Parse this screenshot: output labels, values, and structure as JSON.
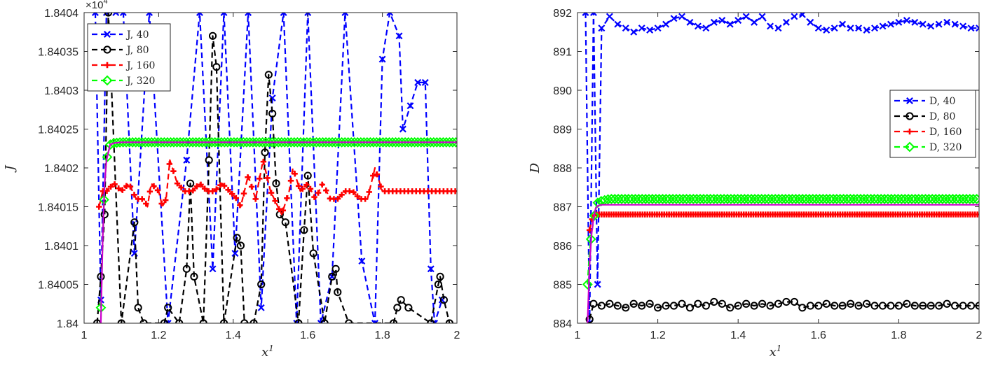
{
  "chart_data": [
    {
      "type": "line",
      "xlabel": "x",
      "xlabel_sup": "1",
      "ylabel": "J",
      "xlim": [
        1,
        2
      ],
      "ylim": [
        1.84,
        1.8404
      ],
      "y_multiplier": "×10",
      "y_multiplier_exp": "4",
      "xticks": [
        "1",
        "1.2",
        "1.4",
        "1.6",
        "1.8",
        "2"
      ],
      "yticks": [
        "1.84",
        "1.84005",
        "1.8401",
        "1.84015",
        "1.8402",
        "1.84025",
        "1.8403",
        "1.84035",
        "1.8404"
      ],
      "grid": false,
      "legend_position": "top-left",
      "series": [
        {
          "name": "J, 40",
          "color": "#0000ff",
          "marker": "x",
          "x": [
            1.03,
            1.045,
            1.06,
            1.085,
            1.105,
            1.135,
            1.175,
            1.225,
            1.275,
            1.31,
            1.345,
            1.375,
            1.405,
            1.44,
            1.475,
            1.505,
            1.535,
            1.57,
            1.6,
            1.635,
            1.665,
            1.7,
            1.745,
            1.78,
            1.8,
            1.82,
            1.845,
            1.855,
            1.875,
            1.895,
            1.915,
            1.93,
            1.94,
            1.96
          ],
          "y": [
            1.8404,
            1.84003,
            1.8404,
            1.8404,
            1.8404,
            1.84009,
            1.8404,
            1.84,
            1.84021,
            1.8404,
            1.84007,
            1.8404,
            1.84009,
            1.8404,
            1.84002,
            1.84029,
            1.8404,
            1.84,
            1.8404,
            1.84,
            1.84006,
            1.8404,
            1.84008,
            1.84,
            1.84034,
            1.8404,
            1.84037,
            1.84025,
            1.84028,
            1.84031,
            1.84031,
            1.84007,
            1.84,
            1.84003
          ]
        },
        {
          "name": "J, 80",
          "color": "#000000",
          "marker": "o",
          "x": [
            1.035,
            1.045,
            1.055,
            1.065,
            1.1,
            1.135,
            1.145,
            1.16,
            1.215,
            1.225,
            1.255,
            1.275,
            1.285,
            1.295,
            1.32,
            1.335,
            1.345,
            1.355,
            1.375,
            1.41,
            1.42,
            1.43,
            1.455,
            1.475,
            1.485,
            1.495,
            1.505,
            1.515,
            1.525,
            1.54,
            1.575,
            1.59,
            1.6,
            1.615,
            1.645,
            1.665,
            1.675,
            1.68,
            1.71,
            1.83,
            1.84,
            1.85,
            1.87,
            1.93,
            1.95,
            1.955,
            1.965,
            1.98
          ],
          "y": [
            1.84,
            1.84006,
            1.84014,
            1.8404,
            1.84,
            1.84013,
            1.84002,
            1.84,
            1.84,
            1.84002,
            1.84,
            1.84007,
            1.84018,
            1.84006,
            1.84,
            1.84021,
            1.84037,
            1.84033,
            1.84,
            1.84011,
            1.8401,
            1.84,
            1.84,
            1.84005,
            1.84022,
            1.84032,
            1.84027,
            1.84018,
            1.84014,
            1.84013,
            1.84,
            1.84012,
            1.84019,
            1.84009,
            1.84,
            1.84006,
            1.84007,
            1.84004,
            1.84,
            1.84,
            1.84002,
            1.84003,
            1.84002,
            1.84,
            1.84005,
            1.84006,
            1.84003,
            1.84
          ]
        },
        {
          "name": "J, 160",
          "color": "#ff0000",
          "marker": "+",
          "x": [
            1.04,
            1.05,
            1.06,
            1.08,
            1.1,
            1.12,
            1.14,
            1.16,
            1.17,
            1.18,
            1.2,
            1.21,
            1.22,
            1.23,
            1.25,
            1.27,
            1.29,
            1.31,
            1.33,
            1.35,
            1.37,
            1.39,
            1.41,
            1.42,
            1.44,
            1.46,
            1.48,
            1.5,
            1.52,
            1.53,
            1.55,
            1.56,
            1.58,
            1.6,
            1.62,
            1.64,
            1.66,
            1.68,
            1.7,
            1.72,
            1.74,
            1.76,
            1.78,
            1.8,
            1.82,
            1.84,
            1.86,
            1.88,
            1.9,
            1.92,
            1.94,
            1.96,
            1.98,
            2.0
          ],
          "y": [
            1.84015,
            1.84017,
            1.84017,
            1.84018,
            1.84017,
            1.84018,
            1.84016,
            1.84016,
            1.84015,
            1.84018,
            1.84017,
            1.84015,
            1.84016,
            1.84021,
            1.84018,
            1.84017,
            1.84017,
            1.84018,
            1.84017,
            1.84017,
            1.84018,
            1.84017,
            1.84016,
            1.84015,
            1.84019,
            1.84016,
            1.84021,
            1.84017,
            1.84015,
            1.84014,
            1.84017,
            1.8402,
            1.84017,
            1.84018,
            1.84016,
            1.84018,
            1.84016,
            1.84016,
            1.84017,
            1.84017,
            1.84016,
            1.84016,
            1.8402,
            1.84017,
            1.84017,
            1.84017,
            1.84017,
            1.84017,
            1.84017,
            1.84017,
            1.84017,
            1.84017,
            1.84017,
            1.84017
          ]
        },
        {
          "name": "J, 320",
          "color": "#00ff00",
          "marker": "diamond",
          "x": [
            1.045,
            1.05,
            1.055,
            1.06,
            1.065,
            1.07,
            1.08,
            1.1,
            1.2,
            1.4,
            1.6,
            1.8,
            2.0
          ],
          "y": [
            1.84002,
            1.84011,
            1.84018,
            1.84021,
            1.84022,
            1.84023,
            1.840232,
            1.840233,
            1.840233,
            1.840233,
            1.840233,
            1.840233,
            1.840233
          ]
        },
        {
          "name": "",
          "color": "#cc00cc",
          "marker": "none",
          "x": [
            1.045,
            1.05,
            1.055,
            1.06,
            1.065,
            1.07,
            1.08,
            1.1,
            1.2,
            1.4,
            1.6,
            1.8,
            2.0
          ],
          "y": [
            1.84,
            1.84011,
            1.84018,
            1.84021,
            1.84022,
            1.84023,
            1.840232,
            1.840233,
            1.840233,
            1.840233,
            1.840233,
            1.840233,
            1.840233
          ]
        }
      ]
    },
    {
      "type": "line",
      "xlabel": "x",
      "xlabel_sup": "1",
      "ylabel": "D",
      "xlim": [
        1,
        2
      ],
      "ylim": [
        884,
        892
      ],
      "xticks": [
        "1",
        "1.2",
        "1.4",
        "1.6",
        "1.8",
        "2"
      ],
      "yticks": [
        "884",
        "885",
        "886",
        "887",
        "888",
        "889",
        "890",
        "891",
        "892"
      ],
      "grid": false,
      "legend_position": "center-right",
      "series": [
        {
          "name": "D, 40",
          "color": "#0000ff",
          "marker": "x",
          "x": [
            1.02,
            1.03,
            1.04,
            1.05,
            1.06,
            1.08,
            1.1,
            1.12,
            1.14,
            1.16,
            1.18,
            1.2,
            1.22,
            1.24,
            1.26,
            1.28,
            1.3,
            1.32,
            1.34,
            1.36,
            1.38,
            1.4,
            1.42,
            1.44,
            1.46,
            1.48,
            1.5,
            1.52,
            1.54,
            1.56,
            1.58,
            1.6,
            1.62,
            1.64,
            1.66,
            1.68,
            1.7,
            1.72,
            1.74,
            1.76,
            1.78,
            1.8,
            1.82,
            1.84,
            1.86,
            1.88,
            1.9,
            1.92,
            1.94,
            1.96,
            1.98,
            2.0
          ],
          "y": [
            892,
            884,
            892,
            885,
            891.6,
            891.9,
            891.7,
            891.6,
            891.5,
            891.6,
            891.55,
            891.6,
            891.7,
            891.85,
            891.9,
            891.75,
            891.65,
            891.6,
            891.75,
            891.8,
            891.7,
            891.8,
            891.9,
            891.75,
            891.9,
            891.65,
            891.6,
            891.75,
            891.9,
            891.95,
            891.75,
            891.6,
            891.55,
            891.6,
            891.7,
            891.6,
            891.6,
            891.55,
            891.6,
            891.65,
            891.7,
            891.75,
            891.8,
            891.75,
            891.7,
            891.65,
            891.7,
            891.75,
            891.7,
            891.65,
            891.6,
            891.6
          ]
        },
        {
          "name": "D, 80",
          "color": "#000000",
          "marker": "o",
          "x": [
            1.03,
            1.04,
            1.06,
            1.08,
            1.1,
            1.12,
            1.14,
            1.16,
            1.18,
            1.2,
            1.22,
            1.24,
            1.26,
            1.28,
            1.3,
            1.32,
            1.34,
            1.36,
            1.38,
            1.4,
            1.42,
            1.44,
            1.46,
            1.48,
            1.5,
            1.52,
            1.54,
            1.56,
            1.58,
            1.6,
            1.62,
            1.64,
            1.66,
            1.68,
            1.7,
            1.72,
            1.74,
            1.76,
            1.78,
            1.8,
            1.82,
            1.84,
            1.86,
            1.88,
            1.9,
            1.92,
            1.94,
            1.96,
            1.98,
            2.0
          ],
          "y": [
            884.1,
            884.5,
            884.45,
            884.5,
            884.45,
            884.4,
            884.5,
            884.45,
            884.5,
            884.4,
            884.45,
            884.45,
            884.5,
            884.4,
            884.5,
            884.45,
            884.55,
            884.5,
            884.4,
            884.45,
            884.5,
            884.45,
            884.5,
            884.45,
            884.5,
            884.55,
            884.55,
            884.4,
            884.45,
            884.45,
            884.5,
            884.45,
            884.45,
            884.5,
            884.45,
            884.5,
            884.45,
            884.45,
            884.45,
            884.45,
            884.5,
            884.45,
            884.45,
            884.45,
            884.45,
            884.5,
            884.45,
            884.45,
            884.45,
            884.45
          ]
        },
        {
          "name": "D, 160",
          "color": "#ff0000",
          "marker": "+",
          "x": [
            1.03,
            1.035,
            1.04,
            1.05,
            1.07,
            1.1,
            1.2,
            1.4,
            1.6,
            1.8,
            2.0
          ],
          "y": [
            886.4,
            886.65,
            886.78,
            886.8,
            886.8,
            886.8,
            886.8,
            886.8,
            886.8,
            886.8,
            886.8
          ],
          "marker_step": 0.006
        },
        {
          "name": "D, 320",
          "color": "#00ff00",
          "marker": "diamond",
          "x": [
            1.025,
            1.03,
            1.035,
            1.04,
            1.045,
            1.05,
            1.06,
            1.08,
            1.1,
            1.2,
            1.4,
            1.6,
            1.8,
            2.0
          ],
          "y": [
            885.0,
            885.85,
            886.3,
            886.65,
            886.95,
            887.1,
            887.15,
            887.2,
            887.2,
            887.2,
            887.2,
            887.2,
            887.2,
            887.2
          ]
        },
        {
          "name": "",
          "color": "#cc00cc",
          "marker": "none",
          "x": [
            1.025,
            1.03,
            1.035,
            1.04,
            1.045,
            1.05,
            1.06,
            1.08,
            1.1,
            1.2,
            1.4,
            1.6,
            1.8,
            2.0
          ],
          "y": [
            884,
            885.5,
            886.3,
            886.7,
            886.95,
            887.02,
            887.05,
            887.05,
            887.05,
            887.05,
            887.05,
            887.05,
            887.05,
            887.05
          ]
        }
      ]
    }
  ]
}
